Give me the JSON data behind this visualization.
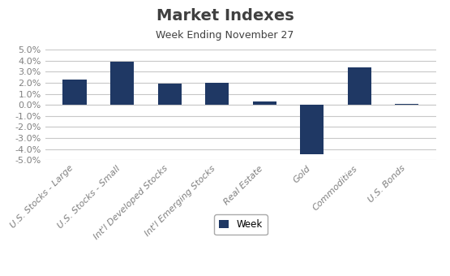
{
  "title": "Market Indexes",
  "subtitle": "Week Ending November 27",
  "categories": [
    "U.S. Stocks - Large",
    "U.S. Stocks - Small",
    "Int'l Developed Stocks",
    "Int'l Emerging Stocks",
    "Real Estate",
    "Gold",
    "Commodities",
    "U.S. Bonds"
  ],
  "values": [
    0.023,
    0.039,
    0.019,
    0.02,
    0.003,
    -0.045,
    0.034,
    0.001
  ],
  "bar_color": "#1F3864",
  "ylim": [
    -0.05,
    0.05
  ],
  "yticks": [
    -0.05,
    -0.04,
    -0.03,
    -0.02,
    -0.01,
    0.0,
    0.01,
    0.02,
    0.03,
    0.04,
    0.05
  ],
  "legend_label": "Week",
  "background_color": "#ffffff",
  "title_fontsize": 14,
  "subtitle_fontsize": 9,
  "tick_label_fontsize": 8,
  "bar_width": 0.5,
  "grid_color": "#c8c8c8",
  "title_color": "#404040",
  "subtitle_color": "#404040",
  "xtick_color": "#808080"
}
